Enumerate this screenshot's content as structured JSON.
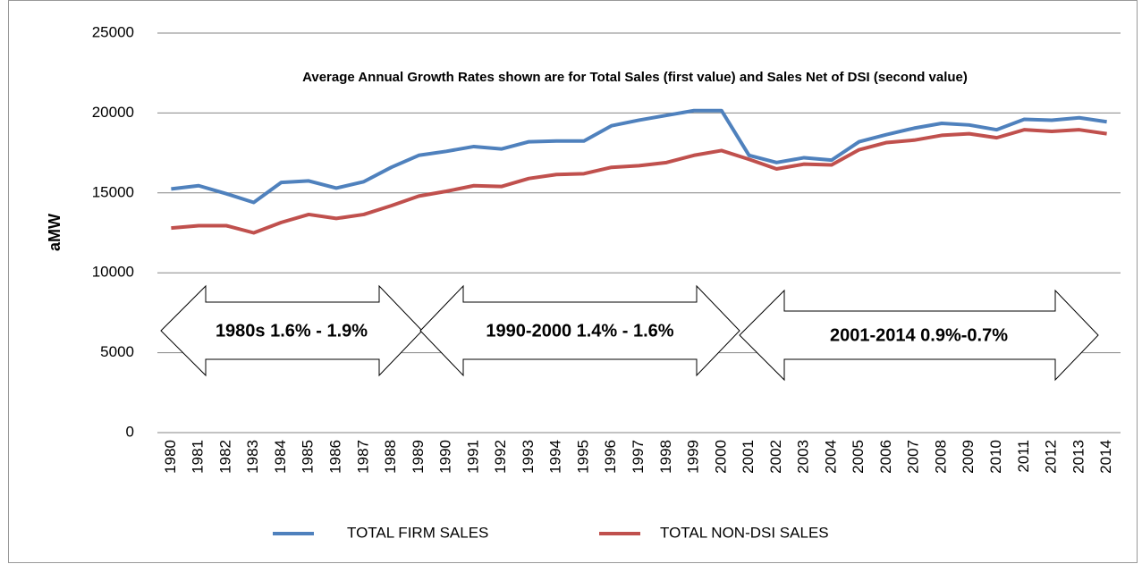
{
  "chart_data": {
    "type": "line",
    "y_label": "aMW",
    "categories": [
      "1980",
      "1981",
      "1982",
      "1983",
      "1984",
      "1985",
      "1986",
      "1987",
      "1988",
      "1989",
      "1990",
      "1991",
      "1992",
      "1993",
      "1994",
      "1995",
      "1996",
      "1997",
      "1998",
      "1999",
      "2000",
      "2001",
      "2002",
      "2003",
      "2004",
      "2005",
      "2006",
      "2007",
      "2008",
      "2009",
      "2010",
      "2011",
      "2012",
      "2013",
      "2014"
    ],
    "series": [
      {
        "name": "TOTAL FIRM SALES",
        "color": "#4f81bd",
        "values": [
          15250,
          15450,
          14950,
          14400,
          15650,
          15750,
          15300,
          15700,
          16600,
          17350,
          17600,
          17900,
          17750,
          18200,
          18250,
          18250,
          19200,
          19550,
          19850,
          20150,
          20150,
          17350,
          16900,
          17200,
          17050,
          18200,
          18650,
          19050,
          19350,
          19250,
          18950,
          19600,
          19550,
          19700,
          19450
        ]
      },
      {
        "name": "TOTAL NON-DSI SALES",
        "color": "#c0504d",
        "values": [
          12800,
          12950,
          12950,
          12500,
          13150,
          13650,
          13400,
          13650,
          14200,
          14800,
          15100,
          15450,
          15400,
          15900,
          16150,
          16200,
          16600,
          16700,
          16900,
          17350,
          17650,
          17100,
          16500,
          16800,
          16750,
          17700,
          18150,
          18300,
          18600,
          18700,
          18450,
          18950,
          18850,
          18950,
          18700
        ]
      }
    ],
    "ylim": [
      0,
      25000
    ],
    "yticks": [
      0,
      5000,
      10000,
      15000,
      20000,
      25000
    ],
    "grid": true,
    "legend": "bottom",
    "annotations": [
      "Average Annual Growth Rates shown are for Total Sales (first value) and Sales Net of DSI (second value)",
      "1980s 1.6% - 1.9%",
      "1990-2000 1.4% - 1.6%",
      "2001-2014 0.9%-0.7%"
    ]
  }
}
